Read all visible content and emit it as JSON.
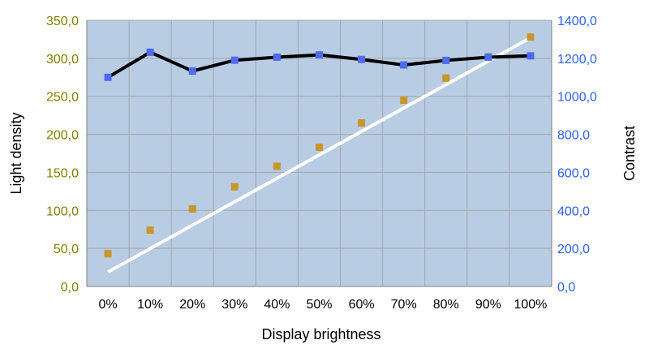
{
  "chart_data": {
    "type": "line",
    "categories": [
      "0%",
      "10%",
      "20%",
      "30%",
      "40%",
      "50%",
      "60%",
      "70%",
      "80%",
      "90%",
      "100%"
    ],
    "xlabel": "Display brightness",
    "ylabel_left": "Light density",
    "ylabel_right": "Contrast",
    "ylim_left": [
      0,
      350
    ],
    "ylim_right": [
      0,
      1400
    ],
    "yticks_left": [
      "0,0",
      "50,0",
      "100,0",
      "150,0",
      "200,0",
      "250,0",
      "300,0",
      "350,0"
    ],
    "yticks_right": [
      "0,0",
      "200,0",
      "400,0",
      "600,0",
      "800,0",
      "1000,0",
      "1200,0",
      "1400,0"
    ],
    "grid": true,
    "series": [
      {
        "axis": "left",
        "values": [
          43,
          74,
          102,
          131,
          158,
          183,
          215,
          245,
          274,
          302,
          328
        ],
        "line_color": "#ffffff",
        "marker_color": "#c8962b",
        "trend_line": [
          19,
          327
        ]
      },
      {
        "axis": "right",
        "values": [
          1100,
          1232,
          1133,
          1190,
          1206,
          1218,
          1194,
          1165,
          1189,
          1206,
          1213
        ],
        "line_color": "#000000",
        "marker_color": "#4f6bef"
      }
    ],
    "colors": {
      "plot_background": "#b8cce4",
      "grid": "#a5a5a5",
      "left_tick_text": "#808000",
      "right_tick_text": "#2f5fff"
    }
  }
}
